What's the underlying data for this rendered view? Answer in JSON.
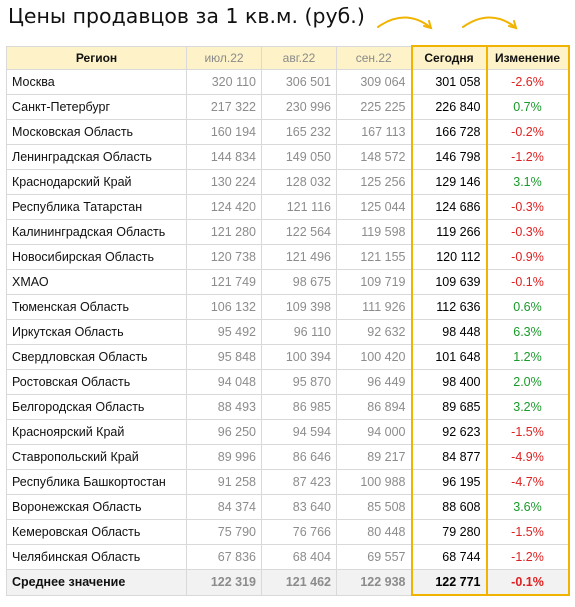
{
  "title": "Цены продавцов за 1 кв.м. (руб.)",
  "colors": {
    "header_bg": "#fdf2c8",
    "highlight_border": "#f0b400",
    "negative": "#e02020",
    "positive": "#1a9a2a"
  },
  "headers": {
    "region": "Регион",
    "m1": "июл.22",
    "m2": "авг.22",
    "m3": "сен.22",
    "today": "Сегодня",
    "change": "Изменение"
  },
  "rows": [
    {
      "region": "Москва",
      "m1": "320 110",
      "m2": "306 501",
      "m3": "309 064",
      "today": "301 058",
      "change": "-2.6%"
    },
    {
      "region": "Санкт-Петербург",
      "m1": "217 322",
      "m2": "230 996",
      "m3": "225 225",
      "today": "226 840",
      "change": "0.7%"
    },
    {
      "region": "Московская Область",
      "m1": "160 194",
      "m2": "165 232",
      "m3": "167 113",
      "today": "166 728",
      "change": "-0.2%"
    },
    {
      "region": "Ленинградская Область",
      "m1": "144 834",
      "m2": "149 050",
      "m3": "148 572",
      "today": "146 798",
      "change": "-1.2%"
    },
    {
      "region": "Краснодарский Край",
      "m1": "130 224",
      "m2": "128 032",
      "m3": "125 256",
      "today": "129 146",
      "change": "3.1%"
    },
    {
      "region": "Республика Татарстан",
      "m1": "124 420",
      "m2": "121 116",
      "m3": "125 044",
      "today": "124 686",
      "change": "-0.3%"
    },
    {
      "region": "Калининградская Область",
      "m1": "121 280",
      "m2": "122 564",
      "m3": "119 598",
      "today": "119 266",
      "change": "-0.3%"
    },
    {
      "region": "Новосибирская Область",
      "m1": "120 738",
      "m2": "121 496",
      "m3": "121 155",
      "today": "120 112",
      "change": "-0.9%"
    },
    {
      "region": "ХМАО",
      "m1": "121 749",
      "m2": "98 675",
      "m3": "109 719",
      "today": "109 639",
      "change": "-0.1%"
    },
    {
      "region": "Тюменская Область",
      "m1": "106 132",
      "m2": "109 398",
      "m3": "111 926",
      "today": "112 636",
      "change": "0.6%"
    },
    {
      "region": "Иркутская Область",
      "m1": "95 492",
      "m2": "96 110",
      "m3": "92 632",
      "today": "98 448",
      "change": "6.3%"
    },
    {
      "region": "Свердловская Область",
      "m1": "95 848",
      "m2": "100 394",
      "m3": "100 420",
      "today": "101 648",
      "change": "1.2%"
    },
    {
      "region": "Ростовская Область",
      "m1": "94 048",
      "m2": "95 870",
      "m3": "96 449",
      "today": "98 400",
      "change": "2.0%"
    },
    {
      "region": "Белгородская Область",
      "m1": "88 493",
      "m2": "86 985",
      "m3": "86 894",
      "today": "89 685",
      "change": "3.2%"
    },
    {
      "region": "Красноярский Край",
      "m1": "96 250",
      "m2": "94 594",
      "m3": "94 000",
      "today": "92 623",
      "change": "-1.5%"
    },
    {
      "region": "Ставропольский Край",
      "m1": "89 996",
      "m2": "86 646",
      "m3": "89 217",
      "today": "84 877",
      "change": "-4.9%"
    },
    {
      "region": "Республика Башкортостан",
      "m1": "91 258",
      "m2": "87 423",
      "m3": "100 988",
      "today": "96 195",
      "change": "-4.7%"
    },
    {
      "region": "Воронежская Область",
      "m1": "84 374",
      "m2": "83 640",
      "m3": "85 508",
      "today": "88 608",
      "change": "3.6%"
    },
    {
      "region": "Кемеровская Область",
      "m1": "75 790",
      "m2": "76 766",
      "m3": "80 448",
      "today": "79 280",
      "change": "-1.5%"
    },
    {
      "region": "Челябинская Область",
      "m1": "67 836",
      "m2": "68 404",
      "m3": "69 557",
      "today": "68 744",
      "change": "-1.2%"
    }
  ],
  "average": {
    "region": "Среднее значение",
    "m1": "122 319",
    "m2": "121 462",
    "m3": "122 938",
    "today": "122 771",
    "change": "-0.1%"
  }
}
